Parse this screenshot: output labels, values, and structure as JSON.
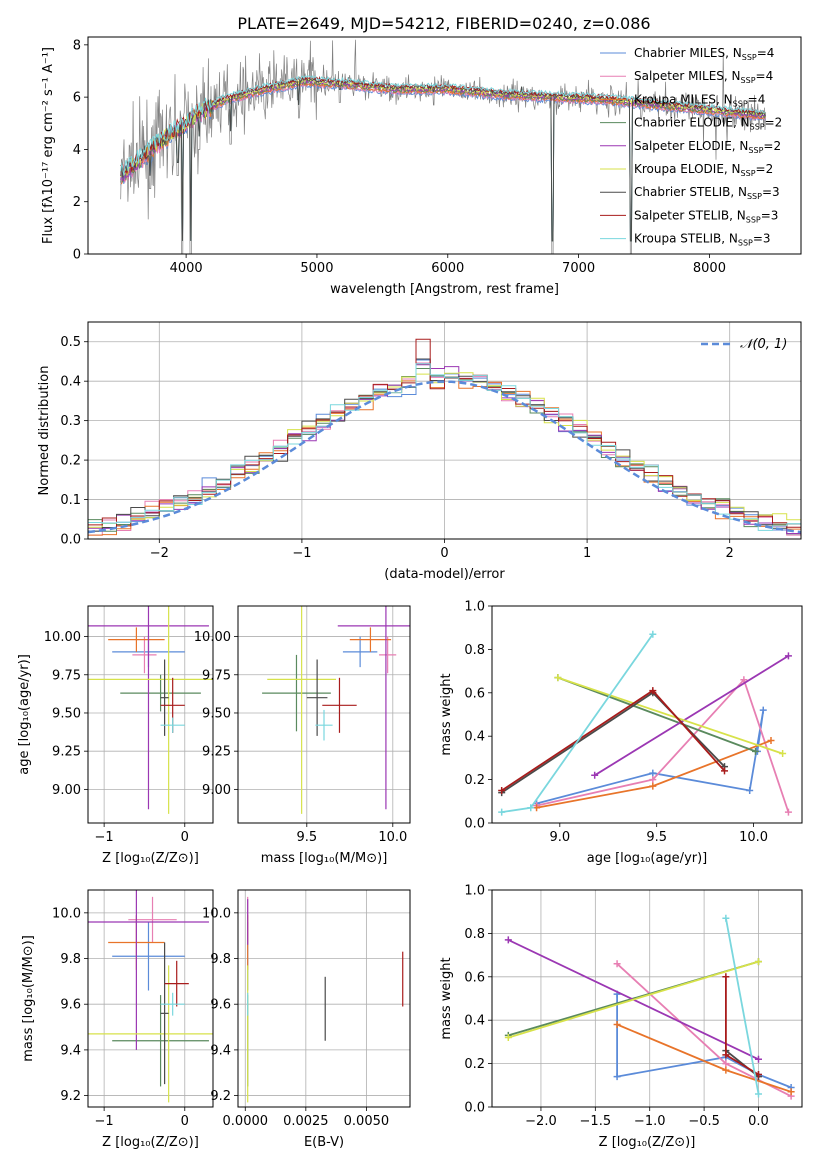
{
  "figure": {
    "title": "PLATE=2649, MJD=54212, FIBERID=0240, z=0.086"
  },
  "models": [
    {
      "label": "Chabrier MILES, N",
      "sub": "SSP",
      "eq": "=4",
      "color": "#5b8bd9"
    },
    {
      "label": "Salpeter MILES, N",
      "sub": "SSP",
      "eq": "=4",
      "color": "#e77fb3"
    },
    {
      "label": "Kroupa MILES, N",
      "sub": "SSP",
      "eq": "=4",
      "color": "#e8742a"
    },
    {
      "label": "Chabrier ELODIE, N",
      "sub": "SSP",
      "eq": "=2",
      "color": "#5a8a5e"
    },
    {
      "label": "Salpeter ELODIE, N",
      "sub": "SSP",
      "eq": "=2",
      "color": "#9b37b3"
    },
    {
      "label": "Kroupa ELODIE, N",
      "sub": "SSP",
      "eq": "=2",
      "color": "#d7e24a"
    },
    {
      "label": "Chabrier STELIB, N",
      "sub": "SSP",
      "eq": "=3",
      "color": "#4a4a4a"
    },
    {
      "label": "Salpeter STELIB, N",
      "sub": "SSP",
      "eq": "=3",
      "color": "#a81c1c"
    },
    {
      "label": "Kroupa STELIB, N",
      "sub": "SSP",
      "eq": "=3",
      "color": "#7ad7de"
    }
  ],
  "chart_data": [
    {
      "id": "spectrum",
      "type": "line",
      "xlabel": "wavelength [Angstrom, rest frame]",
      "ylabel": "Flux [fλ10⁻¹⁷ erg cm⁻² s⁻¹ A⁻¹]",
      "xlim": [
        3250,
        8700
      ],
      "ylim": [
        0,
        8.3
      ],
      "xticks": [
        4000,
        5000,
        6000,
        7000,
        8000
      ],
      "yticks": [
        0,
        2,
        4,
        6,
        8
      ],
      "data_color": "#808080",
      "continuum": {
        "x": [
          3500,
          3650,
          3800,
          3950,
          4100,
          4300,
          4600,
          4900,
          5200,
          5600,
          6000,
          6400,
          6800,
          7200,
          7600,
          8000,
          8400
        ],
        "y": [
          3.0,
          3.6,
          4.3,
          4.8,
          5.4,
          5.9,
          6.3,
          6.6,
          6.5,
          6.3,
          6.3,
          6.1,
          6.0,
          5.9,
          5.7,
          5.5,
          5.3
        ]
      },
      "dips": [
        {
          "x": 3725,
          "y": 2.5
        },
        {
          "x": 3935,
          "y": 3.0
        },
        {
          "x": 3970,
          "y": 0
        },
        {
          "x": 4035,
          "y": 0
        },
        {
          "x": 4100,
          "y": 4.0
        },
        {
          "x": 4340,
          "y": 4.2
        },
        {
          "x": 4861,
          "y": 5.2
        },
        {
          "x": 5175,
          "y": 5.8
        },
        {
          "x": 5893,
          "y": 5.7
        },
        {
          "x": 6563,
          "y": 5.9
        },
        {
          "x": 6800,
          "y": 0
        },
        {
          "x": 7400,
          "y": 0
        }
      ]
    },
    {
      "id": "residuals",
      "type": "area",
      "xlabel": "(data-model)/error",
      "ylabel": "Normed distribution",
      "xlim": [
        -2.5,
        2.5
      ],
      "ylim": [
        0,
        0.55
      ],
      "xticks": [
        -2,
        -1,
        0,
        1,
        2
      ],
      "yticks": [
        0.0,
        0.1,
        0.2,
        0.3,
        0.4,
        0.5
      ],
      "legend": "𝒩(0, 1)",
      "normal_color": "#5b8bd9"
    },
    {
      "id": "age_vs_Z",
      "type": "scatter",
      "xlabel": "Z [log₁₀(Z/Z⊙)]",
      "ylabel": "age  [log₁₀(age/yr)]",
      "xlim": [
        -1.2,
        0.35
      ],
      "ylim": [
        8.78,
        10.2
      ],
      "xticks": [
        -1,
        0
      ],
      "yticks": [
        9.0,
        9.25,
        9.5,
        9.75,
        10.0
      ],
      "points": [
        {
          "x": -0.45,
          "xerr": 0.45,
          "y": 9.9,
          "yerr": 0.1,
          "c": 0
        },
        {
          "x": -0.5,
          "xerr": 0.15,
          "y": 9.88,
          "yerr": 0.12,
          "c": 1
        },
        {
          "x": -0.6,
          "xerr": 0.35,
          "y": 9.98,
          "yerr": 0.08,
          "c": 2
        },
        {
          "x": -0.3,
          "xerr": 0.5,
          "y": 9.63,
          "yerr": 0.12,
          "c": 3
        },
        {
          "x": -0.45,
          "xerr": 0.75,
          "y": 10.07,
          "yerr": 1.2,
          "c": 4
        },
        {
          "x": -0.2,
          "xerr": 1.1,
          "y": 9.72,
          "yerr": 0.88,
          "c": 5
        },
        {
          "x": -0.25,
          "xerr": 0.05,
          "y": 9.6,
          "yerr": 0.25,
          "c": 6
        },
        {
          "x": -0.15,
          "xerr": 0.15,
          "y": 9.55,
          "yerr": 0.18,
          "c": 7
        },
        {
          "x": -0.15,
          "xerr": 0.15,
          "y": 9.42,
          "yerr": 0.05,
          "c": 8
        }
      ]
    },
    {
      "id": "age_vs_mass",
      "type": "scatter",
      "xlabel": "mass [log₁₀(M/M⊙)]",
      "ylabel": "",
      "xlim": [
        9.1,
        10.1
      ],
      "ylim": [
        8.78,
        10.2
      ],
      "xticks": [
        9.5,
        10.0
      ],
      "yticks": [
        9.0,
        9.25,
        9.5,
        9.75,
        10.0
      ],
      "points": [
        {
          "x": 9.81,
          "xerr": 0.1,
          "y": 9.9,
          "yerr": 0.1,
          "c": 0
        },
        {
          "x": 9.97,
          "xerr": 0.05,
          "y": 9.88,
          "yerr": 0.12,
          "c": 1
        },
        {
          "x": 9.87,
          "xerr": 0.12,
          "y": 9.98,
          "yerr": 0.08,
          "c": 2
        },
        {
          "x": 9.44,
          "xerr": 0.2,
          "y": 9.63,
          "yerr": 0.25,
          "c": 3
        },
        {
          "x": 9.96,
          "xerr": 0.28,
          "y": 10.07,
          "yerr": 1.2,
          "c": 4
        },
        {
          "x": 9.47,
          "xerr": 0.2,
          "y": 9.72,
          "yerr": 0.88,
          "c": 5
        },
        {
          "x": 9.56,
          "xerr": 0.06,
          "y": 9.6,
          "yerr": 0.25,
          "c": 6
        },
        {
          "x": 9.69,
          "xerr": 0.1,
          "y": 9.55,
          "yerr": 0.18,
          "c": 7
        },
        {
          "x": 9.6,
          "xerr": 0.05,
          "y": 9.42,
          "yerr": 0.1,
          "c": 8
        }
      ]
    },
    {
      "id": "weight_vs_age",
      "type": "line",
      "xlabel": "age  [log₁₀(age/yr)]",
      "ylabel": "mass weight",
      "xlim": [
        8.65,
        10.25
      ],
      "ylim": [
        0,
        1.0
      ],
      "xticks": [
        9.0,
        9.5,
        10.0
      ],
      "yticks": [
        0.0,
        0.2,
        0.4,
        0.6,
        0.8,
        1.0
      ],
      "series": [
        {
          "c": 0,
          "x": [
            8.88,
            9.48,
            9.98,
            10.05,
            10.02
          ],
          "y": [
            0.09,
            0.23,
            0.15,
            0.52,
            0.33
          ]
        },
        {
          "c": 1,
          "x": [
            8.88,
            9.48,
            9.95,
            10.18
          ],
          "y": [
            0.08,
            0.2,
            0.66,
            0.05
          ]
        },
        {
          "c": 2,
          "x": [
            8.88,
            9.48,
            10.09
          ],
          "y": [
            0.07,
            0.17,
            0.38
          ]
        },
        {
          "c": 3,
          "x": [
            8.99,
            10.01
          ],
          "y": [
            0.67,
            0.33
          ]
        },
        {
          "c": 4,
          "x": [
            9.18,
            10.18
          ],
          "y": [
            0.22,
            0.77
          ]
        },
        {
          "c": 5,
          "x": [
            8.99,
            10.15
          ],
          "y": [
            0.67,
            0.32
          ]
        },
        {
          "c": 6,
          "x": [
            8.7,
            9.48,
            9.85
          ],
          "y": [
            0.14,
            0.6,
            0.26
          ]
        },
        {
          "c": 7,
          "x": [
            8.7,
            9.48,
            9.85
          ],
          "y": [
            0.15,
            0.61,
            0.24
          ]
        },
        {
          "c": 8,
          "x": [
            8.7,
            8.85,
            9.48
          ],
          "y": [
            0.05,
            0.07,
            0.87
          ]
        }
      ]
    },
    {
      "id": "mass_vs_Z",
      "type": "scatter",
      "xlabel": "Z [log₁₀(Z/Z⊙)]",
      "ylabel": "mass [log₁₀(M/M⊙)]",
      "xlim": [
        -1.2,
        0.35
      ],
      "ylim": [
        9.15,
        10.1
      ],
      "xticks": [
        -1,
        0
      ],
      "yticks": [
        9.2,
        9.4,
        9.6,
        9.8,
        10.0
      ],
      "points": [
        {
          "x": -0.45,
          "xerr": 0.45,
          "y": 9.81,
          "yerr": 0.15,
          "c": 0
        },
        {
          "x": -0.4,
          "xerr": 0.3,
          "y": 9.97,
          "yerr": 0.1,
          "c": 1
        },
        {
          "x": -0.6,
          "xerr": 0.35,
          "y": 9.87,
          "yerr": 0.12,
          "c": 2
        },
        {
          "x": -0.3,
          "xerr": 0.6,
          "y": 9.44,
          "yerr": 0.2,
          "c": 3
        },
        {
          "x": -0.6,
          "xerr": 0.9,
          "y": 9.96,
          "yerr": 0.56,
          "c": 4
        },
        {
          "x": -0.2,
          "xerr": 1.05,
          "y": 9.47,
          "yerr": 0.3,
          "c": 5
        },
        {
          "x": -0.25,
          "xerr": 0.05,
          "y": 9.56,
          "yerr": 0.31,
          "c": 6
        },
        {
          "x": -0.1,
          "xerr": 0.15,
          "y": 9.69,
          "yerr": 0.1,
          "c": 7
        },
        {
          "x": -0.15,
          "xerr": 0.15,
          "y": 9.6,
          "yerr": 0.05,
          "c": 8
        }
      ]
    },
    {
      "id": "mass_vs_EBV",
      "type": "scatter",
      "xlabel": "E(B-V)",
      "ylabel": "",
      "xlim": [
        -0.0003,
        0.0068
      ],
      "ylim": [
        9.15,
        10.1
      ],
      "xticks": [
        0.0,
        0.0025,
        0.005
      ],
      "xticklabels": [
        "0.0000",
        "0.0025",
        "0.0050"
      ],
      "yticks": [
        9.2,
        9.4,
        9.6,
        9.8,
        10.0
      ],
      "points": [
        {
          "x": 0.0001,
          "y": 9.81,
          "yerr": 0.15,
          "c": 0
        },
        {
          "x": 0.0001,
          "y": 9.97,
          "yerr": 0.1,
          "c": 1
        },
        {
          "x": 0.0001,
          "y": 9.87,
          "yerr": 0.12,
          "c": 2
        },
        {
          "x": 0.0001,
          "y": 9.44,
          "yerr": 0.2,
          "c": 3
        },
        {
          "x": 0.0001,
          "y": 9.96,
          "yerr": 0.1,
          "c": 4
        },
        {
          "x": 0.0001,
          "y": 9.47,
          "yerr": 0.3,
          "c": 5
        },
        {
          "x": 0.0033,
          "y": 9.58,
          "yerr": 0.14,
          "c": 6
        },
        {
          "x": 0.0065,
          "y": 9.71,
          "yerr": 0.12,
          "c": 7
        },
        {
          "x": 0.0001,
          "y": 9.6,
          "yerr": 0.05,
          "c": 8
        }
      ]
    },
    {
      "id": "weight_vs_Z",
      "type": "line",
      "xlabel": "Z [log₁₀(Z/Z⊙)]",
      "ylabel": "mass weight",
      "xlim": [
        -2.45,
        0.4
      ],
      "ylim": [
        0,
        1.0
      ],
      "xticks": [
        -2.0,
        -1.5,
        -1.0,
        -0.5,
        0.0
      ],
      "yticks": [
        0.0,
        0.2,
        0.4,
        0.6,
        0.8,
        1.0
      ],
      "series": [
        {
          "c": 0,
          "x": [
            -1.3,
            -1.3,
            -0.3,
            0.0,
            0.3
          ],
          "y": [
            0.52,
            0.14,
            0.23,
            0.15,
            0.09
          ]
        },
        {
          "c": 1,
          "x": [
            -1.3,
            -0.3,
            0.3
          ],
          "y": [
            0.66,
            0.2,
            0.05
          ]
        },
        {
          "c": 2,
          "x": [
            -1.3,
            -0.3,
            0.3
          ],
          "y": [
            0.38,
            0.17,
            0.07
          ]
        },
        {
          "c": 3,
          "x": [
            -2.3,
            0.0
          ],
          "y": [
            0.33,
            0.67
          ]
        },
        {
          "c": 4,
          "x": [
            -2.3,
            0.0
          ],
          "y": [
            0.77,
            0.22
          ]
        },
        {
          "c": 5,
          "x": [
            -2.3,
            0.0
          ],
          "y": [
            0.32,
            0.67
          ]
        },
        {
          "c": 6,
          "x": [
            -0.3,
            0.0
          ],
          "y": [
            0.26,
            0.14
          ]
        },
        {
          "c": 7,
          "x": [
            -0.3,
            -0.3,
            0.0
          ],
          "y": [
            0.6,
            0.24,
            0.15
          ]
        },
        {
          "c": 8,
          "x": [
            -0.3,
            0.0
          ],
          "y": [
            0.87,
            0.06
          ]
        }
      ]
    }
  ]
}
